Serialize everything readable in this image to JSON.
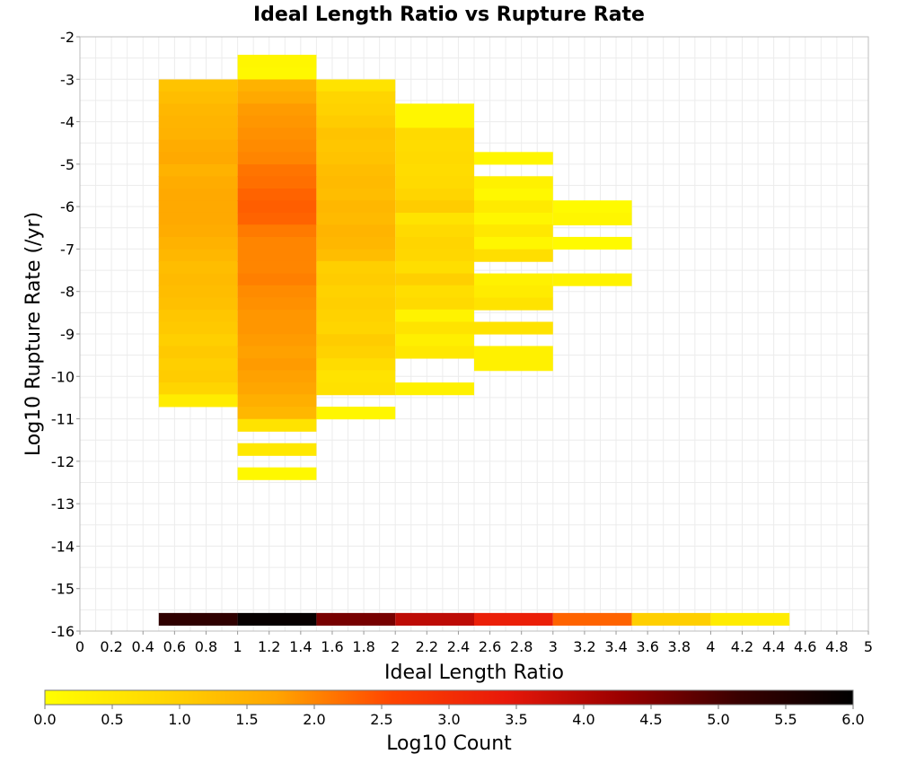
{
  "chart_data": {
    "type": "heatmap",
    "title": "Ideal Length Ratio vs Rupture Rate",
    "xlabel": "Ideal Length Ratio",
    "ylabel": "Log10 Rupture Rate (/yr)",
    "xlim": [
      0,
      5
    ],
    "ylim": [
      -16,
      -2
    ],
    "x_ticks": [
      "0",
      "0.2",
      "0.4",
      "0.6",
      "0.8",
      "1",
      "1.2",
      "1.4",
      "1.6",
      "1.8",
      "2",
      "2.2",
      "2.4",
      "2.6",
      "2.8",
      "3",
      "3.2",
      "3.4",
      "3.6",
      "3.8",
      "4",
      "4.2",
      "4.4",
      "4.6",
      "4.8",
      "5"
    ],
    "y_ticks": [
      "-2",
      "-3",
      "-4",
      "-5",
      "-6",
      "-7",
      "-8",
      "-9",
      "-10",
      "-11",
      "-12",
      "-13",
      "-14",
      "-15",
      "-16"
    ],
    "grid": true,
    "colorbar": {
      "label": "Log10 Count",
      "range": [
        0,
        6
      ],
      "ticks": [
        "0.0",
        "0.5",
        "1.0",
        "1.5",
        "2.0",
        "2.5",
        "3.0",
        "3.5",
        "4.0",
        "4.5",
        "5.0",
        "5.5",
        "6.0"
      ],
      "colors": [
        "#ffff00",
        "#ffd700",
        "#ffa500",
        "#ff4500",
        "#e8180a",
        "#9a0000",
        "#3a0000",
        "#000000"
      ]
    },
    "cell_height": 0.2857,
    "columns": [
      {
        "x": [
          0.5,
          1.0
        ],
        "cells": [
          [
            -3.29,
            1.2
          ],
          [
            -3.57,
            1.3
          ],
          [
            -3.86,
            1.4
          ],
          [
            -4.14,
            1.45
          ],
          [
            -4.43,
            1.5
          ],
          [
            -4.71,
            1.6
          ],
          [
            -5.0,
            1.65
          ],
          [
            -5.29,
            1.5
          ],
          [
            -5.57,
            1.6
          ],
          [
            -5.86,
            1.65
          ],
          [
            -6.14,
            1.65
          ],
          [
            -6.43,
            1.65
          ],
          [
            -6.71,
            1.6
          ],
          [
            -7.0,
            1.5
          ],
          [
            -7.29,
            1.4
          ],
          [
            -7.57,
            1.3
          ],
          [
            -7.86,
            1.35
          ],
          [
            -8.14,
            1.3
          ],
          [
            -8.43,
            1.25
          ],
          [
            -8.71,
            1.15
          ],
          [
            -9.0,
            1.1
          ],
          [
            -9.29,
            1.0
          ],
          [
            -9.57,
            1.1
          ],
          [
            -9.86,
            1.0
          ],
          [
            -10.14,
            1.05
          ],
          [
            -10.43,
            0.9
          ],
          [
            -10.71,
            0.4
          ]
        ]
      },
      {
        "x": [
          1.0,
          1.5
        ],
        "cells": [
          [
            -2.71,
            0.2
          ],
          [
            -3.0,
            0.15
          ],
          [
            -3.29,
            1.5
          ],
          [
            -3.57,
            1.65
          ],
          [
            -3.86,
            1.8
          ],
          [
            -4.14,
            1.85
          ],
          [
            -4.43,
            1.9
          ],
          [
            -4.71,
            1.95
          ],
          [
            -5.0,
            2.0
          ],
          [
            -5.29,
            2.15
          ],
          [
            -5.57,
            2.2
          ],
          [
            -5.86,
            2.3
          ],
          [
            -6.14,
            2.35
          ],
          [
            -6.43,
            2.3
          ],
          [
            -6.71,
            2.1
          ],
          [
            -7.0,
            2.0
          ],
          [
            -7.29,
            2.0
          ],
          [
            -7.57,
            2.0
          ],
          [
            -7.86,
            2.05
          ],
          [
            -8.14,
            1.95
          ],
          [
            -8.43,
            1.9
          ],
          [
            -8.71,
            1.85
          ],
          [
            -9.0,
            1.85
          ],
          [
            -9.29,
            1.8
          ],
          [
            -9.57,
            1.75
          ],
          [
            -9.86,
            1.8
          ],
          [
            -10.14,
            1.75
          ],
          [
            -10.43,
            1.7
          ],
          [
            -10.71,
            1.55
          ],
          [
            -11.0,
            1.4
          ],
          [
            -11.29,
            0.6
          ],
          [
            -11.86,
            0.5
          ],
          [
            -12.43,
            0.15
          ]
        ]
      },
      {
        "x": [
          1.5,
          2.0
        ],
        "cells": [
          [
            -3.29,
            0.6
          ],
          [
            -3.57,
            0.9
          ],
          [
            -3.86,
            0.95
          ],
          [
            -4.14,
            1.05
          ],
          [
            -4.43,
            1.2
          ],
          [
            -4.71,
            1.15
          ],
          [
            -5.0,
            1.2
          ],
          [
            -5.29,
            1.3
          ],
          [
            -5.57,
            1.35
          ],
          [
            -5.86,
            1.3
          ],
          [
            -6.14,
            1.4
          ],
          [
            -6.43,
            1.35
          ],
          [
            -6.71,
            1.45
          ],
          [
            -7.0,
            1.4
          ],
          [
            -7.29,
            1.3
          ],
          [
            -7.57,
            1.0
          ],
          [
            -7.86,
            1.05
          ],
          [
            -8.14,
            0.95
          ],
          [
            -8.43,
            1.0
          ],
          [
            -8.71,
            0.95
          ],
          [
            -9.0,
            0.9
          ],
          [
            -9.29,
            1.05
          ],
          [
            -9.57,
            0.95
          ],
          [
            -9.86,
            0.75
          ],
          [
            -10.14,
            0.6
          ],
          [
            -10.43,
            0.65
          ],
          [
            -11.0,
            0.2
          ]
        ]
      },
      {
        "x": [
          2.0,
          2.5
        ],
        "cells": [
          [
            -3.86,
            0.2
          ],
          [
            -4.14,
            0.2
          ],
          [
            -4.43,
            0.8
          ],
          [
            -4.71,
            0.75
          ],
          [
            -5.0,
            0.8
          ],
          [
            -5.29,
            0.75
          ],
          [
            -5.57,
            0.8
          ],
          [
            -5.86,
            0.9
          ],
          [
            -6.14,
            1.05
          ],
          [
            -6.43,
            0.6
          ],
          [
            -6.71,
            0.8
          ],
          [
            -7.0,
            0.9
          ],
          [
            -7.29,
            0.85
          ],
          [
            -7.57,
            0.7
          ],
          [
            -7.86,
            1.0
          ],
          [
            -8.14,
            0.7
          ],
          [
            -8.43,
            0.8
          ],
          [
            -8.71,
            0.25
          ],
          [
            -9.0,
            0.6
          ],
          [
            -9.29,
            0.35
          ],
          [
            -9.57,
            0.5
          ],
          [
            -10.43,
            0.3
          ]
        ]
      },
      {
        "x": [
          2.5,
          3.0
        ],
        "cells": [
          [
            -5.0,
            0.2
          ],
          [
            -5.57,
            0.3
          ],
          [
            -5.86,
            0.15
          ],
          [
            -6.14,
            0.45
          ],
          [
            -6.43,
            0.2
          ],
          [
            -6.71,
            0.5
          ],
          [
            -7.0,
            0.2
          ],
          [
            -7.29,
            0.7
          ],
          [
            -7.86,
            0.3
          ],
          [
            -8.14,
            0.4
          ],
          [
            -8.43,
            0.6
          ],
          [
            -9.0,
            0.6
          ],
          [
            -9.57,
            0.3
          ],
          [
            -9.86,
            0.3
          ]
        ]
      },
      {
        "x": [
          3.0,
          3.5
        ],
        "cells": [
          [
            -6.14,
            0.1
          ],
          [
            -6.43,
            0.2
          ],
          [
            -7.0,
            0.1
          ],
          [
            -7.86,
            0.25
          ]
        ]
      },
      {
        "x": [
          0.5,
          1.0
        ],
        "cells": [
          [
            -15.86,
            5.3
          ]
        ]
      },
      {
        "x": [
          1.0,
          1.5
        ],
        "cells": [
          [
            -15.86,
            5.9
          ]
        ]
      },
      {
        "x": [
          1.5,
          2.0
        ],
        "cells": [
          [
            -15.86,
            4.6
          ]
        ]
      },
      {
        "x": [
          2.0,
          2.5
        ],
        "cells": [
          [
            -15.86,
            3.9
          ]
        ]
      },
      {
        "x": [
          2.5,
          3.0
        ],
        "cells": [
          [
            -15.86,
            3.3
          ]
        ]
      },
      {
        "x": [
          3.0,
          3.5
        ],
        "cells": [
          [
            -15.86,
            2.3
          ]
        ]
      },
      {
        "x": [
          3.5,
          4.0
        ],
        "cells": [
          [
            -15.86,
            1.0
          ]
        ]
      },
      {
        "x": [
          4.0,
          4.5
        ],
        "cells": [
          [
            -15.86,
            0.4
          ]
        ]
      }
    ]
  }
}
